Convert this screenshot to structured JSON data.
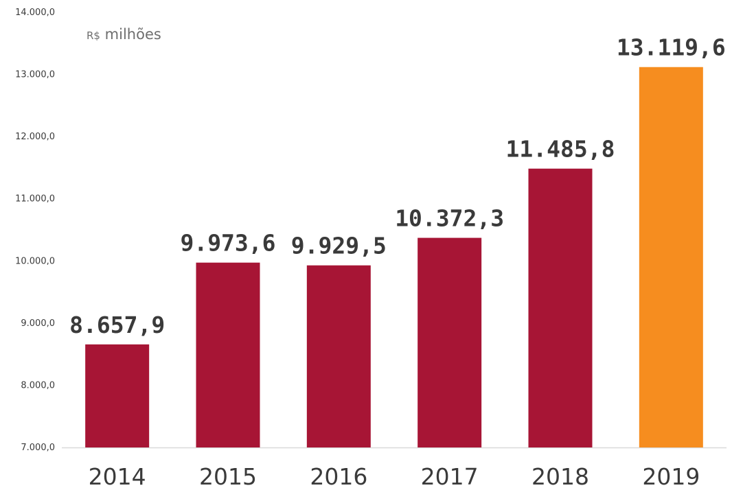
{
  "chart_data": {
    "type": "bar",
    "unit_prefix": "R$",
    "unit_label": "milhões",
    "categories": [
      "2014",
      "2015",
      "2016",
      "2017",
      "2018",
      "2019"
    ],
    "values": [
      8657.9,
      9973.6,
      9929.5,
      10372.3,
      11485.8,
      13119.6
    ],
    "value_labels": [
      "8.657,9",
      "9.973,6",
      "9.929,5",
      "10.372,3",
      "11.485,8",
      "13.119,6"
    ],
    "ylim": [
      7000,
      14000
    ],
    "yticks": [
      7000,
      8000,
      9000,
      10000,
      11000,
      12000,
      13000,
      14000
    ],
    "ytick_labels": [
      "7.000,0",
      "8.000,0",
      "9.000,0",
      "10.000,0",
      "11.000,0",
      "12.000,0",
      "13.000,0",
      "14.000,0"
    ],
    "grid": false,
    "colors": {
      "bar": "#a71535",
      "highlight_bar": "#f68d1f",
      "value_label": "#3a3a3a",
      "axis_label": "#3a3a3a",
      "axis_line": "#d9d9d9"
    },
    "highlight_index": 5
  }
}
